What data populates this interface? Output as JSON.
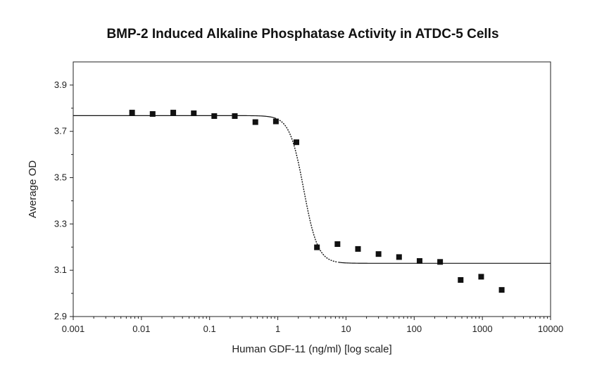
{
  "chart_data": {
    "type": "scatter",
    "title": "BMP-2 Induced Alkaline Phosphatase Activity in ATDC-5 Cells",
    "xlabel": "Human GDF-11 (ng/ml) [log scale]",
    "ylabel": "Average OD",
    "x_scale": "log",
    "xlim": [
      0.001,
      10000
    ],
    "ylim": [
      2.9,
      4.0
    ],
    "x_ticks": [
      {
        "value": 0.001,
        "label": "0.001"
      },
      {
        "value": 0.01,
        "label": "0.01"
      },
      {
        "value": 0.1,
        "label": "0.1"
      },
      {
        "value": 1,
        "label": "1"
      },
      {
        "value": 10,
        "label": "10"
      },
      {
        "value": 100,
        "label": "100"
      },
      {
        "value": 1000,
        "label": "1000"
      },
      {
        "value": 10000,
        "label": "10000"
      }
    ],
    "y_ticks": [
      {
        "value": 2.9,
        "label": "2.9"
      },
      {
        "value": 3.1,
        "label": "3.1"
      },
      {
        "value": 3.3,
        "label": "3.3"
      },
      {
        "value": 3.5,
        "label": "3.5"
      },
      {
        "value": 3.7,
        "label": "3.7"
      },
      {
        "value": 3.9,
        "label": "3.9"
      }
    ],
    "grid": false,
    "series": [
      {
        "marker": "square",
        "color": "#111111",
        "points": [
          {
            "x": 0.0073,
            "y": 3.781
          },
          {
            "x": 0.0146,
            "y": 3.775
          },
          {
            "x": 0.0293,
            "y": 3.781
          },
          {
            "x": 0.0586,
            "y": 3.778
          },
          {
            "x": 0.117,
            "y": 3.766
          },
          {
            "x": 0.234,
            "y": 3.766
          },
          {
            "x": 0.469,
            "y": 3.74
          },
          {
            "x": 0.938,
            "y": 3.743
          },
          {
            "x": 1.875,
            "y": 3.653
          },
          {
            "x": 3.75,
            "y": 3.199
          },
          {
            "x": 7.5,
            "y": 3.213
          },
          {
            "x": 15,
            "y": 3.192
          },
          {
            "x": 30,
            "y": 3.17
          },
          {
            "x": 60,
            "y": 3.157
          },
          {
            "x": 120,
            "y": 3.14
          },
          {
            "x": 240,
            "y": 3.136
          },
          {
            "x": 480,
            "y": 3.058
          },
          {
            "x": 960,
            "y": 3.072
          },
          {
            "x": 1920,
            "y": 3.015
          }
        ]
      }
    ],
    "fit_curve": {
      "model": "4PL",
      "top": 3.768,
      "bottom": 3.13,
      "ec50": 2.4,
      "hill": 4.2,
      "color": "#111111"
    }
  }
}
